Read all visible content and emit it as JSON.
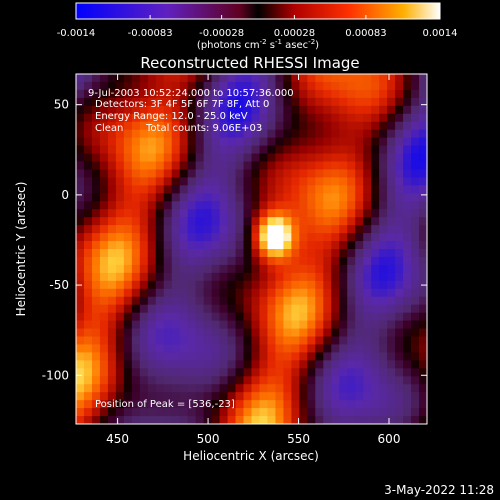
{
  "chart_data": {
    "type": "heatmap",
    "title": "Reconstructed RHESSI Image",
    "xlabel": "Heliocentric X (arcsec)",
    "ylabel": "Heliocentric Y (arcsec)",
    "xlim": [
      427,
      621
    ],
    "ylim": [
      -127,
      67
    ],
    "x_ticks": [
      450,
      500,
      550,
      600
    ],
    "y_ticks": [
      50,
      0,
      -50,
      -100
    ],
    "colorbar": {
      "ticks": [
        "-0.0014",
        "-0.00083",
        "-0.00028",
        "0.00028",
        "0.00083",
        "0.0014"
      ],
      "unit_base": "(photons cm",
      "unit_exp1": "-2",
      "unit_mid": " s",
      "unit_exp2": "-1",
      "unit_mid2": " asec",
      "unit_exp3": "-2",
      "unit_end": ")",
      "range": [
        -0.0014,
        0.0014
      ]
    },
    "annotations": {
      "time": "9-Jul-2003 10:52:24.000 to 10:57:36.000",
      "detectors": "Detectors: 3F 4F 5F 6F 7F 8F, Att 0",
      "energy": "Energy Range: 12.0 - 25.0 keV",
      "clean_label": "Clean",
      "counts": "Total counts: 9.06E+03",
      "peak": "Position of Peak = [536,-23]"
    },
    "peak": [
      536,
      -23
    ],
    "footer_date": "3-May-2022 11:28"
  }
}
